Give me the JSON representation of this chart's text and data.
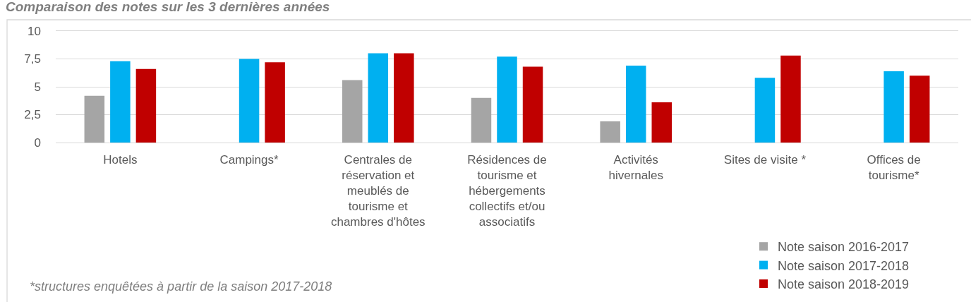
{
  "chart_data": {
    "type": "bar",
    "title": "Comparaison des notes sur les 3 dernières années",
    "categories": [
      "Hotels",
      "Campings*",
      "Centrales de réservation et meublés de tourisme et chambres d'hôtes",
      "Résidences de tourisme et hébergements collectifs et/ou associatifs",
      "Activités hivernales",
      "Sites de visite *",
      "Offices de tourisme*"
    ],
    "series": [
      {
        "name": "Note saison 2016-2017",
        "color": "#a5a5a5",
        "values": [
          4.2,
          null,
          5.6,
          4.0,
          1.9,
          null,
          null
        ]
      },
      {
        "name": "Note saison 2017-2018",
        "color": "#00b0f0",
        "values": [
          7.3,
          7.5,
          8.0,
          7.7,
          6.9,
          5.8,
          6.4
        ]
      },
      {
        "name": "Note saison 2018-2019",
        "color": "#c00000",
        "values": [
          6.6,
          7.2,
          8.0,
          6.8,
          3.6,
          7.8,
          6.0
        ]
      }
    ],
    "ylim": [
      0,
      10
    ],
    "yticks": [
      0,
      {
        "value": 2.5,
        "label": "2,5"
      },
      5,
      {
        "value": 7.5,
        "label": "7,5"
      },
      10
    ],
    "grid": "y",
    "legend": "bottom right",
    "annotations": [
      "*structures enquêtées à partir de la saison 2017-2018"
    ]
  }
}
